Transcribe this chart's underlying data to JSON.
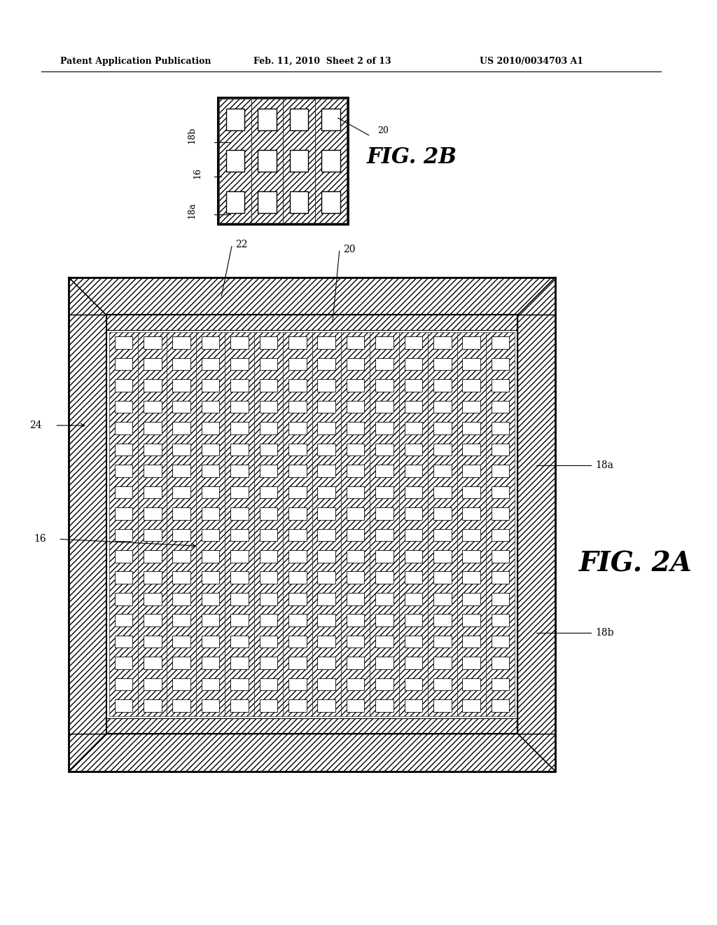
{
  "bg_color": "#ffffff",
  "header_text_left": "Patent Application Publication",
  "header_text_mid": "Feb. 11, 2010  Sheet 2 of 13",
  "header_text_right": "US 2010/0034703 A1",
  "fig2B_label": "FIG. 2B",
  "fig2A_label": "FIG. 2A",
  "label_16": "16",
  "label_18a": "18a",
  "label_18b": "18b",
  "label_20": "20",
  "label_22": "22",
  "label_24": "24"
}
